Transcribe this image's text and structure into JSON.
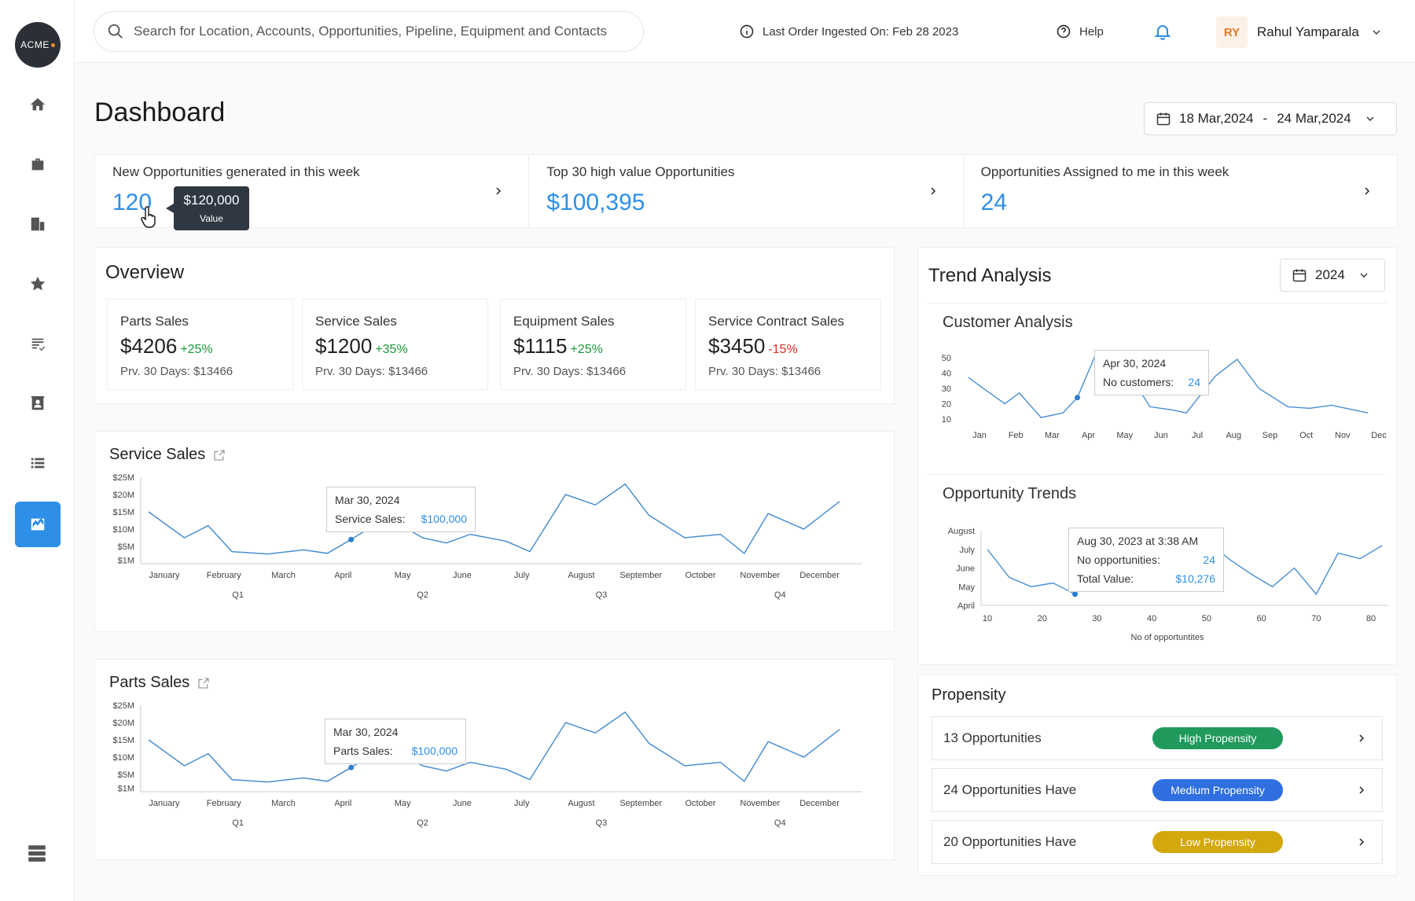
{
  "logo": {
    "text": "ACME"
  },
  "search": {
    "placeholder": "Search for Location, Accounts, Opportunities, Pipeline, Equipment and Contacts"
  },
  "topbar": {
    "last_order": "Last Order Ingested On: Feb 28 2023",
    "help": "Help",
    "user_initials": "RY",
    "user_name": "Rahul Yamparala"
  },
  "page": {
    "title": "Dashboard",
    "date_from": "18 Mar,2024",
    "date_sep": "-",
    "date_to": "24 Mar,2024"
  },
  "kpis": [
    {
      "label": "New Opportunities generated in this week",
      "value": "120"
    },
    {
      "label": "Top 30 high value Opportunities",
      "value": "$100,395"
    },
    {
      "label": "Opportunities Assigned to me in this week",
      "value": "24"
    }
  ],
  "kpi_tooltip": {
    "value": "$120,000",
    "label": "Value"
  },
  "overview": {
    "title": "Overview",
    "cards": [
      {
        "label": "Parts Sales",
        "value": "$4206",
        "change": "+25%",
        "prev_label": "Prv. 30 Days:",
        "prev_value": "$13466",
        "change_color": "#1a9a3a"
      },
      {
        "label": "Service Sales",
        "value": "$1200",
        "change": "+35%",
        "prev_label": "Prv. 30 Days:",
        "prev_value": "$13466",
        "change_color": "#1a9a3a"
      },
      {
        "label": "Equipment Sales",
        "value": "$1115",
        "change": "+25%",
        "prev_label": "Prv. 30 Days:",
        "prev_value": "$13466",
        "change_color": "#1a9a3a"
      },
      {
        "label": "Service Contract Sales",
        "value": "$3450",
        "change": "-15%",
        "prev_label": "Prv. 30 Days:",
        "prev_value": "$13466",
        "change_color": "#d93025"
      }
    ]
  },
  "service_sales": {
    "title": "Service Sales",
    "tooltip": {
      "date": "Mar 30, 2024",
      "label": "Service Sales:",
      "value": "$100,000"
    }
  },
  "parts_sales": {
    "title": "Parts Sales",
    "tooltip": {
      "date": "Mar 30, 2024",
      "label": "Parts Sales:",
      "value": "$100,000"
    }
  },
  "trend": {
    "title": "Trend Analysis",
    "year": "2024",
    "customer_title": "Customer Analysis",
    "customer_tooltip": {
      "date": "Apr 30, 2024",
      "label": "No customers:",
      "value": "24"
    },
    "opp_title": "Opportunity Trends",
    "opp_tooltip": {
      "date": "Aug 30, 2023 at 3:38 AM",
      "label1": "No opportunities:",
      "value1": "24",
      "label2": "Total Value:",
      "value2": "$10,276"
    }
  },
  "propensity": {
    "title": "Propensity",
    "rows": [
      {
        "text": "13 Opportunities",
        "badge": "High Propensity",
        "color": "#1f9a5c"
      },
      {
        "text": "24 Opportunities Have",
        "badge": "Medium Propensity",
        "color": "#2f6fe0"
      },
      {
        "text": "20 Opportunities Have",
        "badge": "Low  Propensity",
        "color": "#d4a80c"
      }
    ]
  },
  "chart_data": [
    {
      "type": "line",
      "title": "Service Sales",
      "y_ticks": [
        "$25M",
        "$20M",
        "$15M",
        "$10M",
        "$5M",
        "$1M"
      ],
      "ylim": [
        0,
        25
      ],
      "categories": [
        "January",
        "February",
        "March",
        "April",
        "May",
        "June",
        "July",
        "August",
        "September",
        "October",
        "November",
        "December"
      ],
      "quarters": [
        "Q1",
        "Q2",
        "Q3",
        "Q4"
      ],
      "x": [
        0,
        0.6,
        1,
        1.4,
        2,
        2.6,
        3,
        3.4,
        4,
        4.6,
        5,
        5.4,
        6,
        6.4,
        7,
        7.5,
        8,
        8.4,
        9,
        9.6,
        10,
        10.4,
        11,
        11.6
      ],
      "values": [
        15,
        7.5,
        11,
        3.5,
        2.8,
        4,
        3,
        7,
        13.5,
        7.5,
        6,
        8.5,
        6.5,
        3.5,
        20,
        17,
        23,
        14,
        7.5,
        8.5,
        3,
        14.5,
        10,
        18
      ]
    },
    {
      "type": "line",
      "title": "Parts Sales",
      "y_ticks": [
        "$25M",
        "$20M",
        "$15M",
        "$10M",
        "$5M",
        "$1M"
      ],
      "ylim": [
        0,
        25
      ],
      "categories": [
        "January",
        "February",
        "March",
        "April",
        "May",
        "June",
        "July",
        "August",
        "September",
        "October",
        "November",
        "December"
      ],
      "quarters": [
        "Q1",
        "Q2",
        "Q3",
        "Q4"
      ],
      "x": [
        0,
        0.6,
        1,
        1.4,
        2,
        2.6,
        3,
        3.4,
        4,
        4.6,
        5,
        5.4,
        6,
        6.4,
        7,
        7.5,
        8,
        8.4,
        9,
        9.6,
        10,
        10.4,
        11,
        11.6
      ],
      "values": [
        15,
        7.5,
        11,
        3.5,
        2.8,
        4,
        3,
        7,
        13.5,
        7.5,
        6,
        8.5,
        6.5,
        3.5,
        20,
        17,
        23,
        14,
        7.5,
        8.5,
        3,
        14.5,
        10,
        18
      ]
    },
    {
      "type": "line",
      "title": "Customer Analysis",
      "y_ticks": [
        "50",
        "40",
        "30",
        "20",
        "10"
      ],
      "ylim": [
        10,
        50
      ],
      "categories": [
        "Jan",
        "Feb",
        "Mar",
        "Apr",
        "May",
        "Jun",
        "Jul",
        "Aug",
        "Sep",
        "Oct",
        "Nov",
        "Dec"
      ],
      "x": [
        0,
        1,
        1.4,
        2,
        2.6,
        3,
        3.5,
        4,
        4.6,
        5,
        5.6,
        6,
        6.8,
        7.4,
        8,
        8.8,
        9.4,
        10,
        10.6,
        11
      ],
      "values": [
        37,
        20,
        27,
        11,
        14,
        24,
        52,
        45,
        33,
        18,
        16,
        14,
        38,
        49,
        30,
        18,
        17,
        19,
        16,
        14
      ]
    },
    {
      "type": "line",
      "title": "Opportunity Trends",
      "xlabel": "No of opportuntites",
      "y_ticks": [
        "August",
        "July",
        "June",
        "May",
        "April"
      ],
      "x_ticks": [
        "10",
        "20",
        "30",
        "40",
        "50",
        "60",
        "70",
        "80"
      ],
      "x": [
        10,
        14,
        18,
        22,
        26,
        30,
        34,
        38,
        42,
        46,
        50,
        54,
        58,
        62,
        66,
        70,
        74,
        78,
        82
      ],
      "values": [
        3,
        1.5,
        1,
        1.2,
        0.6,
        2.5,
        3,
        1.5,
        1.2,
        2,
        3.5,
        2.5,
        1.7,
        1,
        2,
        0.6,
        2.8,
        2.5,
        3.2
      ]
    }
  ]
}
